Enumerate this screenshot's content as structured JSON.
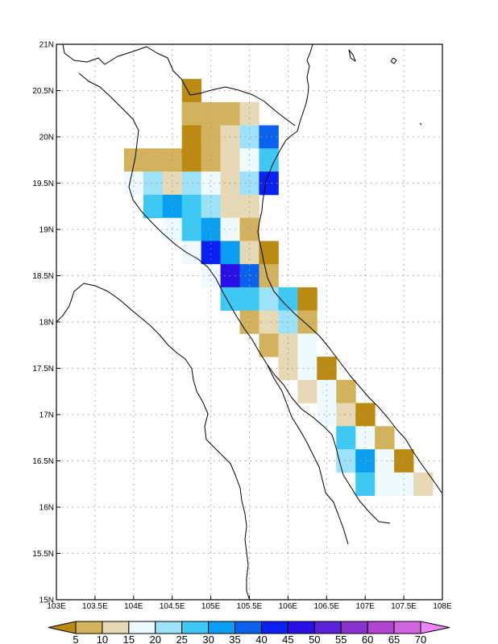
{
  "map": {
    "lon_range": [
      103,
      108
    ],
    "lat_range": [
      15,
      21
    ],
    "grid_lines": true,
    "lon_ticks": [
      "103E",
      "103.5E",
      "104E",
      "104.5E",
      "105E",
      "105.5E",
      "106E",
      "106.5E",
      "107E",
      "107.5E",
      "108E"
    ],
    "lat_ticks": [
      "15N",
      "15.5N",
      "16N",
      "16.5N",
      "17N",
      "17.5N",
      "18N",
      "18.5N",
      "19N",
      "19.5N",
      "20N",
      "20.5N",
      "21N"
    ],
    "cell_size_deg": 0.25,
    "colors": [
      "#bb8a12",
      "#d2b25c",
      "#e8d9b6",
      "#f0fbff",
      "#9ee2fa",
      "#40c8f4",
      "#0a9ef2",
      "#0a62ec",
      "#0a20f0",
      "#2a10e6",
      "#5a22d8",
      "#8a32cc",
      "#b244d2",
      "#d066de",
      "#ec86f2"
    ],
    "thresholds": [
      "5",
      "10",
      "15",
      "20",
      "25",
      "30",
      "35",
      "40",
      "45",
      "50",
      "55",
      "60",
      "65",
      "70"
    ],
    "cells": [
      [
        104.75,
        20.5,
        0
      ],
      [
        104.75,
        20.25,
        1
      ],
      [
        105.0,
        20.25,
        1
      ],
      [
        105.25,
        20.25,
        1
      ],
      [
        105.5,
        20.25,
        2
      ],
      [
        104.75,
        20.0,
        0
      ],
      [
        105.0,
        20.0,
        1
      ],
      [
        105.25,
        20.0,
        2
      ],
      [
        105.5,
        20.0,
        4
      ],
      [
        105.75,
        20.0,
        7
      ],
      [
        104.0,
        19.75,
        1
      ],
      [
        104.25,
        19.75,
        1
      ],
      [
        104.5,
        19.75,
        1
      ],
      [
        104.75,
        19.75,
        0
      ],
      [
        105.0,
        19.75,
        1
      ],
      [
        105.25,
        19.75,
        2
      ],
      [
        105.5,
        19.75,
        3
      ],
      [
        105.75,
        19.75,
        5
      ],
      [
        104.0,
        19.5,
        3
      ],
      [
        104.25,
        19.5,
        4
      ],
      [
        104.5,
        19.5,
        2
      ],
      [
        104.75,
        19.5,
        4
      ],
      [
        105.0,
        19.5,
        3
      ],
      [
        105.25,
        19.5,
        2
      ],
      [
        105.5,
        19.5,
        4
      ],
      [
        105.75,
        19.5,
        8
      ],
      [
        104.25,
        19.25,
        5
      ],
      [
        104.5,
        19.25,
        6
      ],
      [
        104.75,
        19.25,
        5
      ],
      [
        105.0,
        19.25,
        4
      ],
      [
        105.25,
        19.25,
        2
      ],
      [
        105.5,
        19.25,
        2
      ],
      [
        104.5,
        19.0,
        3
      ],
      [
        104.75,
        19.0,
        5
      ],
      [
        105.0,
        19.0,
        6
      ],
      [
        105.25,
        19.0,
        3
      ],
      [
        105.5,
        19.0,
        1
      ],
      [
        104.75,
        18.75,
        3
      ],
      [
        105.0,
        18.75,
        8
      ],
      [
        105.25,
        18.75,
        6
      ],
      [
        105.5,
        18.75,
        2
      ],
      [
        105.75,
        18.75,
        0
      ],
      [
        105.0,
        18.5,
        3
      ],
      [
        105.25,
        18.5,
        9
      ],
      [
        105.5,
        18.5,
        7
      ],
      [
        105.75,
        18.5,
        1
      ],
      [
        105.25,
        18.25,
        5
      ],
      [
        105.5,
        18.25,
        5
      ],
      [
        105.75,
        18.25,
        4
      ],
      [
        106.0,
        18.25,
        5
      ],
      [
        106.25,
        18.25,
        0
      ],
      [
        105.5,
        18.0,
        1
      ],
      [
        105.75,
        18.0,
        2
      ],
      [
        106.0,
        18.0,
        4
      ],
      [
        106.25,
        18.0,
        1
      ],
      [
        105.75,
        17.75,
        1
      ],
      [
        106.0,
        17.75,
        2
      ],
      [
        106.25,
        17.75,
        3
      ],
      [
        106.0,
        17.5,
        2
      ],
      [
        106.25,
        17.5,
        3
      ],
      [
        106.5,
        17.5,
        0
      ],
      [
        106.25,
        17.25,
        2
      ],
      [
        106.5,
        17.25,
        3
      ],
      [
        106.75,
        17.25,
        1
      ],
      [
        106.5,
        17.0,
        3
      ],
      [
        106.75,
        17.0,
        2
      ],
      [
        107.0,
        17.0,
        0
      ],
      [
        106.75,
        16.75,
        5
      ],
      [
        107.0,
        16.75,
        3
      ],
      [
        107.25,
        16.75,
        1
      ],
      [
        106.75,
        16.5,
        4
      ],
      [
        107.0,
        16.5,
        6
      ],
      [
        107.25,
        16.5,
        3
      ],
      [
        107.5,
        16.5,
        0
      ],
      [
        107.0,
        16.25,
        5
      ],
      [
        107.25,
        16.25,
        3
      ],
      [
        107.5,
        16.25,
        3
      ],
      [
        107.75,
        16.25,
        2
      ]
    ]
  }
}
